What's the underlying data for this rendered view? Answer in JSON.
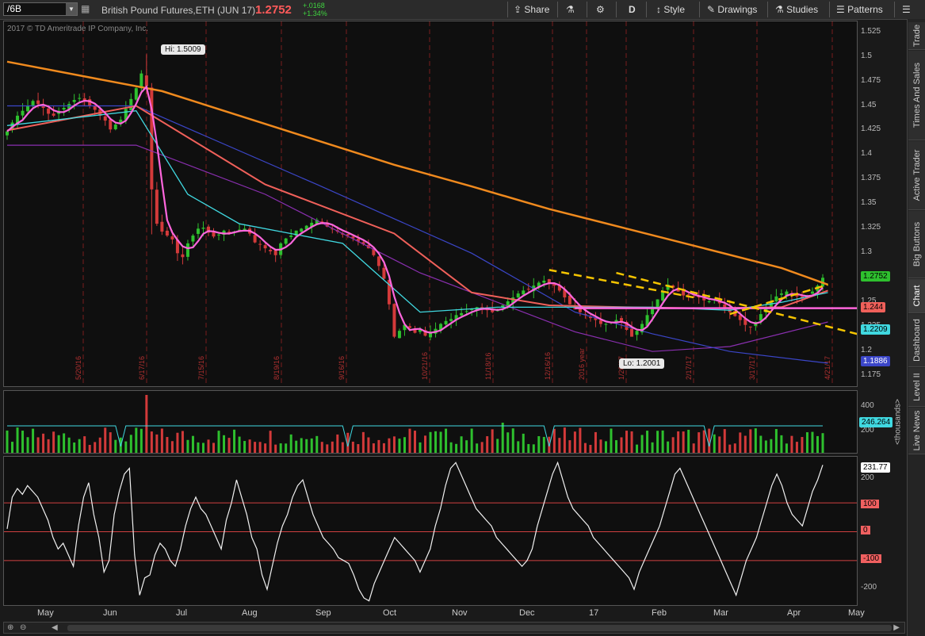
{
  "toolbar": {
    "symbol": "/6B",
    "title": "British Pound Futures,ETH (JUN 17)",
    "last_price": "1.2752",
    "net_change": "+.0168",
    "pct_change": "+1.34%",
    "share": "Share",
    "aggregation": "D",
    "style": "Style",
    "drawings": "Drawings",
    "studies": "Studies",
    "patterns": "Patterns"
  },
  "copyright": "2017 © TD Ameritrade IP Company, Inc.",
  "right_tabs": [
    "Trade",
    "Times And Sales",
    "Active Trader",
    "Big Buttons",
    "Chart",
    "Dashboard",
    "Level II",
    "Live News"
  ],
  "colors": {
    "up": "#2ec02e",
    "down": "#d33a3a",
    "ma_orange": "#f08a1e",
    "ma_red": "#f0605a",
    "ma_pink": "#ff66dd",
    "ma_cyan": "#40d8e0",
    "ma_blue": "#3b46c8",
    "ma_purple": "#8a2fb0",
    "trend_yellow": "#f5c400"
  },
  "chart_data": [
    {
      "type": "line",
      "title": "British Pound Futures,ETH (JUN 17)",
      "x_months": [
        "May",
        "Jun",
        "Jul",
        "Aug",
        "Sep",
        "Oct",
        "Nov",
        "Dec",
        "17",
        "Feb",
        "Mar",
        "Apr",
        "May"
      ],
      "date_markers": [
        "5/20/16",
        "6/17/16",
        "7/15/16",
        "8/19/16",
        "9/16/16",
        "10/21/16",
        "11/18/16",
        "12/16/16",
        "2016 year",
        "1/20/17",
        "2/17/17",
        "3/17/17",
        "4/21/17"
      ],
      "yticks": [
        "1.525",
        "1.5",
        "1.475",
        "1.45",
        "1.425",
        "1.4",
        "1.375",
        "1.35",
        "1.325",
        "1.3",
        "1.275",
        "1.25",
        "1.225",
        "1.2",
        "1.175"
      ],
      "ylim": [
        1.163,
        1.536
      ],
      "high_label": "Hi: 1.5009",
      "low_label": "Lo: 1.2001",
      "price_close": [
        1.424,
        1.433,
        1.44,
        1.445,
        1.45,
        1.455,
        1.452,
        1.448,
        1.442,
        1.44,
        1.445,
        1.448,
        1.452,
        1.456,
        1.458,
        1.455,
        1.45,
        1.446,
        1.44,
        1.435,
        1.426,
        1.431,
        1.436,
        1.447,
        1.457,
        1.468,
        1.483,
        1.47,
        1.365,
        1.33,
        1.322,
        1.318,
        1.314,
        1.3,
        1.296,
        1.31,
        1.318,
        1.325,
        1.326,
        1.321,
        1.317,
        1.319,
        1.323,
        1.321,
        1.322,
        1.324,
        1.325,
        1.32,
        1.311,
        1.309,
        1.305,
        1.302,
        1.298,
        1.31,
        1.315,
        1.318,
        1.323,
        1.325,
        1.328,
        1.331,
        1.334,
        1.33,
        1.327,
        1.325,
        1.322,
        1.319,
        1.318,
        1.315,
        1.312,
        1.309,
        1.305,
        1.298,
        1.287,
        1.274,
        1.248,
        1.215,
        1.221,
        1.227,
        1.224,
        1.219,
        1.222,
        1.216,
        1.219,
        1.223,
        1.228,
        1.231,
        1.233,
        1.237,
        1.239,
        1.241,
        1.243,
        1.245,
        1.244,
        1.242,
        1.24,
        1.243,
        1.247,
        1.251,
        1.255,
        1.259,
        1.262,
        1.263,
        1.267,
        1.27,
        1.272,
        1.269,
        1.267,
        1.262,
        1.255,
        1.248,
        1.243,
        1.24,
        1.237,
        1.234,
        1.232,
        1.228,
        1.228,
        1.23,
        1.232,
        1.231,
        1.222,
        1.215,
        1.221,
        1.228,
        1.237,
        1.245,
        1.253,
        1.261,
        1.268,
        1.265,
        1.261,
        1.257,
        1.258,
        1.256,
        1.255,
        1.252,
        1.251,
        1.253,
        1.249,
        1.245,
        1.24,
        1.236,
        1.232,
        1.227,
        1.225,
        1.23,
        1.238,
        1.245,
        1.251,
        1.256,
        1.259,
        1.261,
        1.258,
        1.256,
        1.254,
        1.257,
        1.261,
        1.267,
        1.275
      ],
      "ma_orange": [
        [
          0,
          1.495
        ],
        [
          15,
          1.48
        ],
        [
          30,
          1.465
        ],
        [
          45,
          1.44
        ],
        [
          60,
          1.415
        ],
        [
          75,
          1.39
        ],
        [
          90,
          1.368
        ],
        [
          105,
          1.345
        ],
        [
          120,
          1.325
        ],
        [
          135,
          1.305
        ],
        [
          150,
          1.285
        ],
        [
          159,
          1.268
        ]
      ],
      "ma_red": [
        [
          0,
          1.425
        ],
        [
          25,
          1.45
        ],
        [
          50,
          1.37
        ],
        [
          75,
          1.32
        ],
        [
          90,
          1.26
        ],
        [
          105,
          1.247
        ],
        [
          120,
          1.245
        ],
        [
          135,
          1.244
        ],
        [
          150,
          1.245
        ],
        [
          159,
          1.262
        ]
      ],
      "ma_cyan": [
        [
          0,
          1.43
        ],
        [
          25,
          1.445
        ],
        [
          35,
          1.36
        ],
        [
          45,
          1.33
        ],
        [
          65,
          1.31
        ],
        [
          80,
          1.24
        ],
        [
          95,
          1.245
        ],
        [
          110,
          1.245
        ],
        [
          125,
          1.245
        ],
        [
          140,
          1.242
        ],
        [
          150,
          1.25
        ],
        [
          159,
          1.26
        ]
      ],
      "ma_blue": [
        [
          0,
          1.45
        ],
        [
          25,
          1.45
        ],
        [
          60,
          1.37
        ],
        [
          90,
          1.3
        ],
        [
          110,
          1.24
        ],
        [
          125,
          1.218
        ],
        [
          140,
          1.2
        ],
        [
          159,
          1.188
        ]
      ],
      "ma_purple": [
        [
          0,
          1.41
        ],
        [
          25,
          1.41
        ],
        [
          50,
          1.36
        ],
        [
          80,
          1.28
        ],
        [
          110,
          1.22
        ],
        [
          125,
          1.2
        ],
        [
          140,
          1.205
        ],
        [
          159,
          1.23
        ]
      ],
      "hline": 1.244,
      "trend_upper": [
        [
          1.255,
          133
        ],
        [
          1.283,
          105
        ]
      ],
      "trend_lower": [
        [
          1.238,
          140
        ],
        [
          1.268,
          159
        ]
      ],
      "trend_down": [
        [
          1.28,
          118
        ],
        [
          1.2,
          178
        ]
      ],
      "price_tags": [
        "1.2752",
        "1.244",
        "1.2209",
        "1.1886"
      ]
    },
    {
      "type": "bar",
      "title": "Volume",
      "ylabel": "<thousands>",
      "yticks": [
        "400",
        "200"
      ],
      "last_value": "246.264"
    },
    {
      "type": "line",
      "title": "CCI",
      "yticks": [
        "200",
        "100",
        "0",
        "-100",
        "-200"
      ],
      "last_value": "231.77",
      "ylim": [
        -260,
        260
      ],
      "levels": [
        100,
        0,
        -100
      ],
      "values": [
        10,
        120,
        150,
        130,
        160,
        140,
        120,
        80,
        40,
        -20,
        -60,
        -40,
        -80,
        -120,
        20,
        120,
        170,
        60,
        -20,
        -140,
        -100,
        60,
        140,
        200,
        220,
        -80,
        -220,
        -160,
        -150,
        -80,
        -40,
        -60,
        -100,
        -120,
        -60,
        20,
        80,
        120,
        80,
        60,
        20,
        -20,
        -60,
        40,
        100,
        180,
        120,
        60,
        -20,
        -60,
        -150,
        -200,
        -120,
        -40,
        20,
        60,
        120,
        160,
        180,
        120,
        60,
        20,
        -20,
        -40,
        -60,
        -90,
        -100,
        -110,
        -150,
        -200,
        -230,
        -240,
        -180,
        -140,
        -100,
        -60,
        -20,
        -40,
        -60,
        -80,
        -100,
        -140,
        -100,
        -60,
        20,
        80,
        160,
        220,
        240,
        200,
        160,
        120,
        80,
        60,
        40,
        20,
        -20,
        -40,
        -60,
        -80,
        -100,
        -120,
        -100,
        -60,
        20,
        80,
        140,
        200,
        240,
        180,
        120,
        80,
        60,
        40,
        20,
        -20,
        -40,
        -60,
        -80,
        -100,
        -120,
        -140,
        -160,
        -200,
        -140,
        -100,
        -60,
        -20,
        20,
        80,
        140,
        200,
        220,
        180,
        140,
        100,
        60,
        20,
        -20,
        -60,
        -100,
        -140,
        -180,
        -220,
        -160,
        -100,
        -60,
        -20,
        40,
        100,
        160,
        200,
        160,
        100,
        60,
        40,
        20,
        80,
        140,
        180,
        231.77
      ]
    }
  ]
}
